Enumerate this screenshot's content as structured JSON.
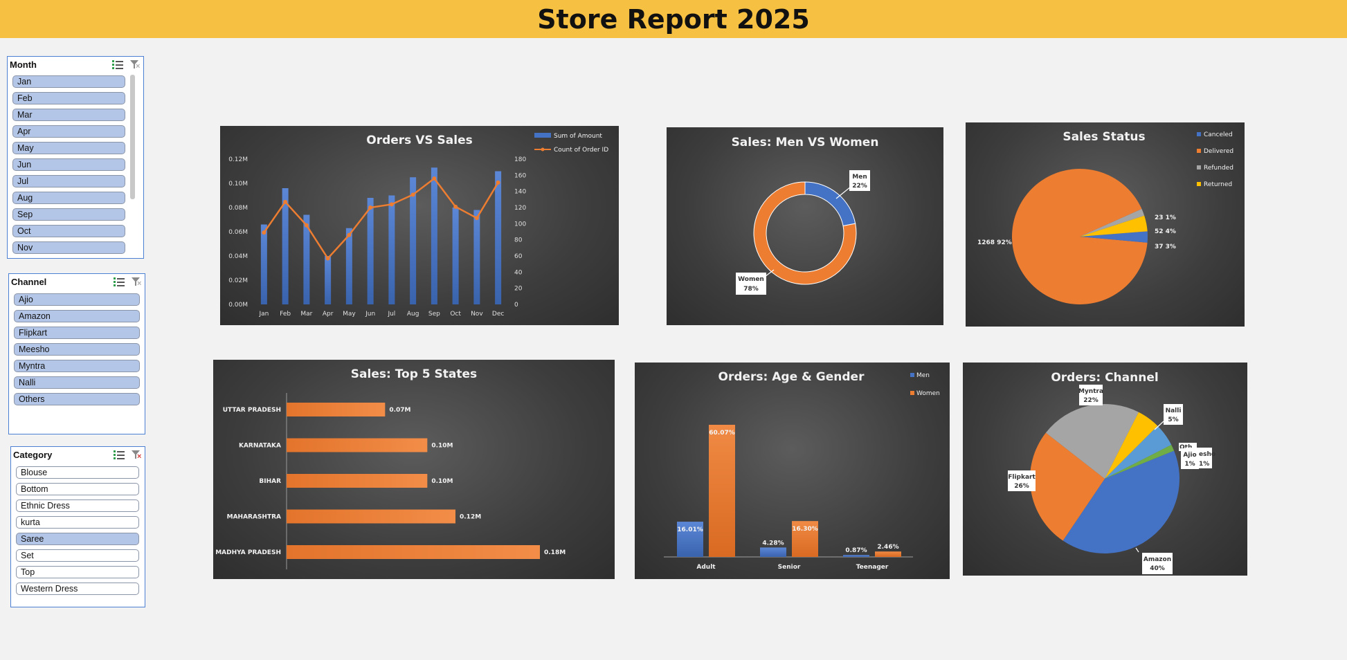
{
  "page_title": "Store Report 2025",
  "colors": {
    "title_bar": "#f6c142",
    "blue": "#4472c4",
    "orange": "#ed7d31",
    "gray": "#a5a5a5",
    "yellow": "#ffc000",
    "green": "#70ad47",
    "slicer_selected": "#b4c6e7"
  },
  "slicers": {
    "month": {
      "title": "Month",
      "items": [
        {
          "label": "Jan",
          "selected": true
        },
        {
          "label": "Feb",
          "selected": true
        },
        {
          "label": "Mar",
          "selected": true
        },
        {
          "label": "Apr",
          "selected": true
        },
        {
          "label": "May",
          "selected": true
        },
        {
          "label": "Jun",
          "selected": true
        },
        {
          "label": "Jul",
          "selected": true
        },
        {
          "label": "Aug",
          "selected": true
        },
        {
          "label": "Sep",
          "selected": true
        },
        {
          "label": "Oct",
          "selected": true
        },
        {
          "label": "Nov",
          "selected": true
        }
      ]
    },
    "channel": {
      "title": "Channel",
      "items": [
        {
          "label": "Ajio",
          "selected": true
        },
        {
          "label": "Amazon",
          "selected": true
        },
        {
          "label": "Flipkart",
          "selected": true
        },
        {
          "label": "Meesho",
          "selected": true
        },
        {
          "label": "Myntra",
          "selected": true
        },
        {
          "label": "Nalli",
          "selected": true
        },
        {
          "label": "Others",
          "selected": true
        }
      ]
    },
    "category": {
      "title": "Category",
      "items": [
        {
          "label": "Blouse",
          "selected": false
        },
        {
          "label": "Bottom",
          "selected": false
        },
        {
          "label": "Ethnic Dress",
          "selected": false
        },
        {
          "label": "kurta",
          "selected": false
        },
        {
          "label": "Saree",
          "selected": true
        },
        {
          "label": "Set",
          "selected": false
        },
        {
          "label": "Top",
          "selected": false
        },
        {
          "label": "Western Dress",
          "selected": false
        }
      ]
    }
  },
  "chart_data": [
    {
      "id": "orders_vs_sales",
      "type": "bar",
      "title": "Orders VS Sales",
      "categories": [
        "Jan",
        "Feb",
        "Mar",
        "Apr",
        "May",
        "Jun",
        "Jul",
        "Aug",
        "Sep",
        "Oct",
        "Nov",
        "Dec"
      ],
      "series": [
        {
          "name": "Sum of Amount",
          "type": "bar",
          "axis": "left",
          "values": [
            0.066,
            0.096,
            0.074,
            0.04,
            0.063,
            0.088,
            0.09,
            0.105,
            0.113,
            0.08,
            0.078,
            0.11
          ]
        },
        {
          "name": "Count of Order ID",
          "type": "line",
          "axis": "right",
          "values": [
            89,
            127,
            98,
            57,
            86,
            120,
            124,
            136,
            156,
            121,
            107,
            151
          ]
        }
      ],
      "y_left_ticks": [
        "0.00M",
        "0.02M",
        "0.04M",
        "0.06M",
        "0.08M",
        "0.10M",
        "0.12M"
      ],
      "y_left_lim": [
        0,
        0.12
      ],
      "y_right_ticks": [
        "0",
        "20",
        "40",
        "60",
        "80",
        "100",
        "120",
        "140",
        "160",
        "180"
      ],
      "y_right_lim": [
        0,
        180
      ],
      "legend": "top-right"
    },
    {
      "id": "men_vs_women",
      "type": "pie",
      "variant": "donut",
      "title": "Sales: Men VS Women",
      "slices": [
        {
          "name": "Men",
          "value": 22,
          "label": "22%"
        },
        {
          "name": "Women",
          "value": 78,
          "label": "78%"
        }
      ]
    },
    {
      "id": "sales_status",
      "type": "pie",
      "title": "Sales Status",
      "slices": [
        {
          "name": "Canceled",
          "value": 37,
          "label": "37 3%"
        },
        {
          "name": "Delivered",
          "value": 1268,
          "label": "1268 92%"
        },
        {
          "name": "Refunded",
          "value": 23,
          "label": "23 1%"
        },
        {
          "name": "Returned",
          "value": 52,
          "label": "52 4%"
        }
      ],
      "legend": "top-right"
    },
    {
      "id": "top5_states",
      "type": "bar",
      "orientation": "horizontal",
      "title": "Sales: Top 5 States",
      "categories": [
        "UTTAR PRADESH",
        "KARNATAKA",
        "BIHAR",
        "MAHARASHTRA",
        "MADHYA PRADESH"
      ],
      "values": [
        0.07,
        0.1,
        0.1,
        0.12,
        0.18
      ],
      "labels": [
        "0.07M",
        "0.10M",
        "0.10M",
        "0.12M",
        "0.18M"
      ]
    },
    {
      "id": "age_gender",
      "type": "bar",
      "title": "Orders: Age & Gender",
      "categories": [
        "Adult",
        "Senior",
        "Teenager"
      ],
      "series": [
        {
          "name": "Men",
          "values": [
            16.01,
            4.28,
            0.87
          ],
          "labels": [
            "16.01%",
            "4.28%",
            "0.87%"
          ]
        },
        {
          "name": "Women",
          "values": [
            60.07,
            16.3,
            2.46
          ],
          "labels": [
            "60.07%",
            "16.30%",
            "2.46%"
          ]
        }
      ],
      "legend": "top-right"
    },
    {
      "id": "channel",
      "type": "pie",
      "title": "Orders: Channel",
      "slices": [
        {
          "name": "Amazon",
          "value": 40,
          "label": "40%"
        },
        {
          "name": "Flipkart",
          "value": 26,
          "label": "26%"
        },
        {
          "name": "Myntra",
          "value": 22,
          "label": "22%"
        },
        {
          "name": "Nalli",
          "value": 5,
          "label": "5%"
        },
        {
          "name": "Ajio",
          "value": 1,
          "label": "1%"
        }
      ],
      "partially_hidden_labels": [
        "Oth",
        "esho",
        "1%"
      ]
    }
  ]
}
